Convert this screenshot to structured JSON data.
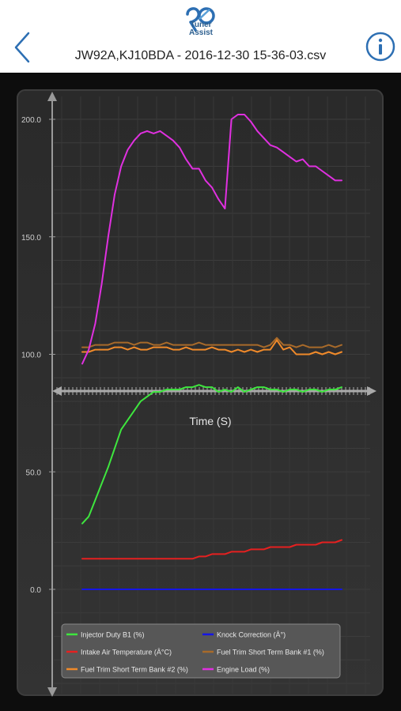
{
  "header": {
    "logo_text_line1": "Tuner",
    "logo_text_line2": "Assist",
    "file_title": "JW92A,KJ10BDA - 2016-12-30 15-36-03.csv",
    "back_icon": "chevron-left-icon",
    "info_icon": "info-circle-icon",
    "accent_color": "#2d6fb3"
  },
  "chart_data": {
    "type": "line",
    "xlabel": "Time (S)",
    "ylabel": "",
    "x_range": [
      0,
      100
    ],
    "ylim": [
      -40,
      210
    ],
    "yticks": [
      0,
      50,
      100,
      150,
      200
    ],
    "ytick_labels": [
      "0.0",
      "50.0",
      "100.0",
      "150.0",
      "200.0"
    ],
    "x": [
      0,
      2.5,
      5,
      7.5,
      10,
      12.5,
      15,
      17.5,
      20,
      22.5,
      25,
      27.5,
      30,
      32.5,
      35,
      37.5,
      40,
      42.5,
      45,
      47.5,
      50,
      52.5,
      55,
      57.5,
      60,
      62.5,
      65,
      67.5,
      70,
      72.5,
      75,
      77.5,
      80,
      82.5,
      85,
      87.5,
      90,
      92.5,
      95,
      97.5,
      100
    ],
    "grid": true,
    "legend_position": "bottom",
    "series": [
      {
        "name": "Injector Duty B1 (%)",
        "color": "#3ee63e",
        "values": [
          28,
          31,
          38,
          45,
          52,
          60,
          68,
          72,
          76,
          80,
          82,
          84,
          84,
          85,
          85,
          85,
          86,
          86,
          87,
          86,
          86,
          84,
          85,
          84,
          86,
          84,
          85,
          86,
          86,
          85,
          85,
          84,
          85,
          85,
          84,
          85,
          85,
          84,
          85,
          85,
          86
        ]
      },
      {
        "name": "Knock Correction (Â°)",
        "color": "#1515e6",
        "values": [
          0,
          0,
          0,
          0,
          0,
          0,
          0,
          0,
          0,
          0,
          0,
          0,
          0,
          0,
          0,
          0,
          0,
          0,
          0,
          0,
          0,
          0,
          0,
          0,
          0,
          0,
          0,
          0,
          0,
          0,
          0,
          0,
          0,
          0,
          0,
          0,
          0,
          0,
          0,
          0,
          0
        ]
      },
      {
        "name": "Intake Air Temperature (Â°C)",
        "color": "#e62020",
        "values": [
          13,
          13,
          13,
          13,
          13,
          13,
          13,
          13,
          13,
          13,
          13,
          13,
          13,
          13,
          13,
          13,
          13,
          13,
          14,
          14,
          15,
          15,
          15,
          16,
          16,
          16,
          17,
          17,
          17,
          18,
          18,
          18,
          18,
          19,
          19,
          19,
          19,
          20,
          20,
          20,
          21
        ]
      },
      {
        "name": "Fuel Trim Short Term Bank #1 (%)",
        "color": "#a86a2a",
        "values": [
          103,
          103,
          104,
          104,
          104,
          105,
          105,
          105,
          104,
          105,
          105,
          104,
          104,
          105,
          104,
          104,
          104,
          104,
          105,
          104,
          104,
          104,
          104,
          104,
          104,
          104,
          104,
          104,
          103,
          104,
          107,
          104,
          104,
          103,
          104,
          103,
          103,
          103,
          104,
          103,
          104
        ]
      },
      {
        "name": "Fuel Trim Short Term Bank #2 (%)",
        "color": "#f08a2a",
        "values": [
          101,
          101,
          102,
          102,
          102,
          103,
          103,
          102,
          103,
          102,
          102,
          103,
          103,
          103,
          102,
          102,
          103,
          102,
          102,
          102,
          103,
          102,
          102,
          101,
          102,
          101,
          102,
          101,
          102,
          102,
          106,
          102,
          103,
          100,
          100,
          100,
          101,
          100,
          101,
          100,
          101
        ]
      },
      {
        "name": "Engine Load (%)",
        "color": "#e030e0",
        "values": [
          96,
          102,
          113,
          130,
          150,
          168,
          180,
          187,
          191,
          194,
          195,
          194,
          195,
          193,
          191,
          188,
          183,
          179,
          179,
          174,
          171,
          166,
          162,
          200,
          202,
          202,
          199,
          195,
          192,
          189,
          188,
          186,
          184,
          182,
          183,
          180,
          180,
          178,
          176,
          174,
          174
        ]
      }
    ]
  }
}
